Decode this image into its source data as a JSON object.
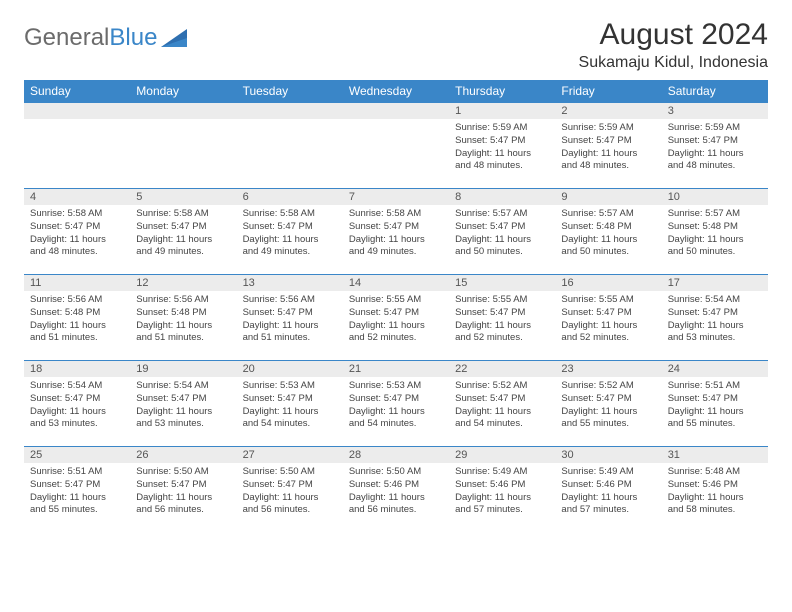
{
  "logo": {
    "part1": "General",
    "part2": "Blue"
  },
  "title": "August 2024",
  "location": "Sukamaju Kidul, Indonesia",
  "colors": {
    "header_bg": "#3a86c8",
    "header_text": "#ffffff",
    "daynum_bg": "#ececec",
    "border": "#3a86c8",
    "body_text": "#444444",
    "title_text": "#333333"
  },
  "fonts": {
    "title_size": 30,
    "location_size": 16,
    "header_size": 12,
    "daynum_size": 11,
    "cell_size": 9.5
  },
  "weekdays": [
    "Sunday",
    "Monday",
    "Tuesday",
    "Wednesday",
    "Thursday",
    "Friday",
    "Saturday"
  ],
  "weeks": [
    [
      null,
      null,
      null,
      null,
      {
        "n": "1",
        "sr": "5:59 AM",
        "ss": "5:47 PM",
        "dl": "11 hours and 48 minutes."
      },
      {
        "n": "2",
        "sr": "5:59 AM",
        "ss": "5:47 PM",
        "dl": "11 hours and 48 minutes."
      },
      {
        "n": "3",
        "sr": "5:59 AM",
        "ss": "5:47 PM",
        "dl": "11 hours and 48 minutes."
      }
    ],
    [
      {
        "n": "4",
        "sr": "5:58 AM",
        "ss": "5:47 PM",
        "dl": "11 hours and 48 minutes."
      },
      {
        "n": "5",
        "sr": "5:58 AM",
        "ss": "5:47 PM",
        "dl": "11 hours and 49 minutes."
      },
      {
        "n": "6",
        "sr": "5:58 AM",
        "ss": "5:47 PM",
        "dl": "11 hours and 49 minutes."
      },
      {
        "n": "7",
        "sr": "5:58 AM",
        "ss": "5:47 PM",
        "dl": "11 hours and 49 minutes."
      },
      {
        "n": "8",
        "sr": "5:57 AM",
        "ss": "5:47 PM",
        "dl": "11 hours and 50 minutes."
      },
      {
        "n": "9",
        "sr": "5:57 AM",
        "ss": "5:48 PM",
        "dl": "11 hours and 50 minutes."
      },
      {
        "n": "10",
        "sr": "5:57 AM",
        "ss": "5:48 PM",
        "dl": "11 hours and 50 minutes."
      }
    ],
    [
      {
        "n": "11",
        "sr": "5:56 AM",
        "ss": "5:48 PM",
        "dl": "11 hours and 51 minutes."
      },
      {
        "n": "12",
        "sr": "5:56 AM",
        "ss": "5:48 PM",
        "dl": "11 hours and 51 minutes."
      },
      {
        "n": "13",
        "sr": "5:56 AM",
        "ss": "5:47 PM",
        "dl": "11 hours and 51 minutes."
      },
      {
        "n": "14",
        "sr": "5:55 AM",
        "ss": "5:47 PM",
        "dl": "11 hours and 52 minutes."
      },
      {
        "n": "15",
        "sr": "5:55 AM",
        "ss": "5:47 PM",
        "dl": "11 hours and 52 minutes."
      },
      {
        "n": "16",
        "sr": "5:55 AM",
        "ss": "5:47 PM",
        "dl": "11 hours and 52 minutes."
      },
      {
        "n": "17",
        "sr": "5:54 AM",
        "ss": "5:47 PM",
        "dl": "11 hours and 53 minutes."
      }
    ],
    [
      {
        "n": "18",
        "sr": "5:54 AM",
        "ss": "5:47 PM",
        "dl": "11 hours and 53 minutes."
      },
      {
        "n": "19",
        "sr": "5:54 AM",
        "ss": "5:47 PM",
        "dl": "11 hours and 53 minutes."
      },
      {
        "n": "20",
        "sr": "5:53 AM",
        "ss": "5:47 PM",
        "dl": "11 hours and 54 minutes."
      },
      {
        "n": "21",
        "sr": "5:53 AM",
        "ss": "5:47 PM",
        "dl": "11 hours and 54 minutes."
      },
      {
        "n": "22",
        "sr": "5:52 AM",
        "ss": "5:47 PM",
        "dl": "11 hours and 54 minutes."
      },
      {
        "n": "23",
        "sr": "5:52 AM",
        "ss": "5:47 PM",
        "dl": "11 hours and 55 minutes."
      },
      {
        "n": "24",
        "sr": "5:51 AM",
        "ss": "5:47 PM",
        "dl": "11 hours and 55 minutes."
      }
    ],
    [
      {
        "n": "25",
        "sr": "5:51 AM",
        "ss": "5:47 PM",
        "dl": "11 hours and 55 minutes."
      },
      {
        "n": "26",
        "sr": "5:50 AM",
        "ss": "5:47 PM",
        "dl": "11 hours and 56 minutes."
      },
      {
        "n": "27",
        "sr": "5:50 AM",
        "ss": "5:47 PM",
        "dl": "11 hours and 56 minutes."
      },
      {
        "n": "28",
        "sr": "5:50 AM",
        "ss": "5:46 PM",
        "dl": "11 hours and 56 minutes."
      },
      {
        "n": "29",
        "sr": "5:49 AM",
        "ss": "5:46 PM",
        "dl": "11 hours and 57 minutes."
      },
      {
        "n": "30",
        "sr": "5:49 AM",
        "ss": "5:46 PM",
        "dl": "11 hours and 57 minutes."
      },
      {
        "n": "31",
        "sr": "5:48 AM",
        "ss": "5:46 PM",
        "dl": "11 hours and 58 minutes."
      }
    ]
  ],
  "labels": {
    "sunrise": "Sunrise:",
    "sunset": "Sunset:",
    "daylight": "Daylight:"
  }
}
